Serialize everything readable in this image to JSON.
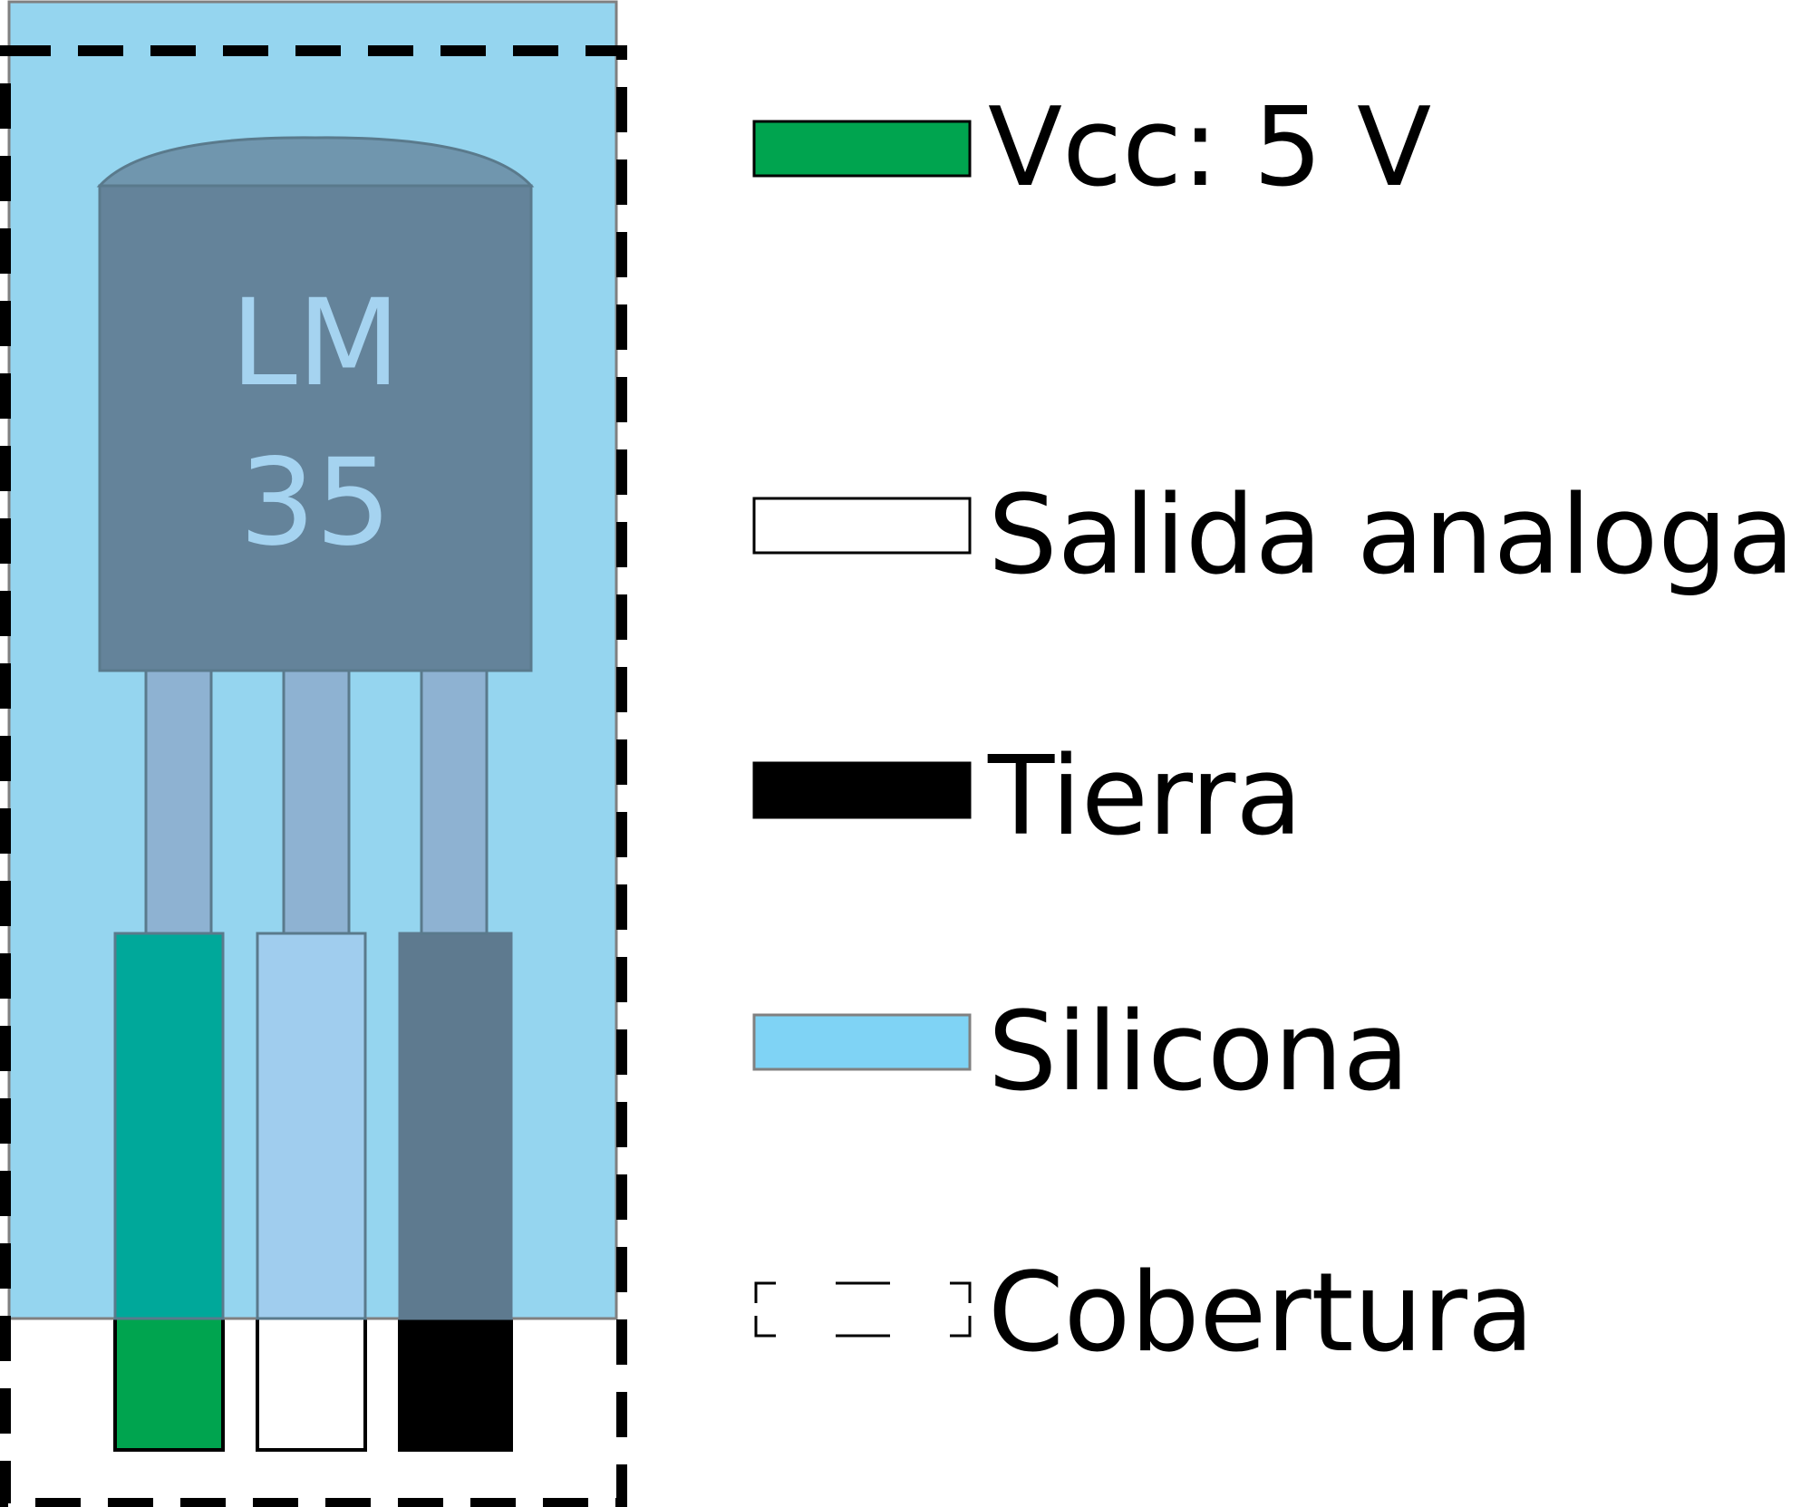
{
  "sensor": {
    "chip_line1": "LM",
    "chip_line2": "35"
  },
  "legend": [
    {
      "key": "vcc",
      "label": "Vcc: 5 V",
      "swatch": "green-solid"
    },
    {
      "key": "output",
      "label": "Salida analoga",
      "swatch": "white-outline"
    },
    {
      "key": "ground",
      "label": "Tierra",
      "swatch": "black-solid"
    },
    {
      "key": "silicone",
      "label": "Silicona",
      "swatch": "light-blue-solid"
    },
    {
      "key": "cover",
      "label": "Cobertura",
      "swatch": "dashed-outline"
    }
  ],
  "colors": {
    "silicone": "#95d5ef",
    "silicone_legend": "#7fd3f5",
    "chip_body": "#64839a",
    "chip_dome": "#7096ae",
    "chip_text": "#a5d3f0",
    "leg": "#8eb2d2",
    "vcc_wire": "#00a44f",
    "vcc_wire_covered": "#00a89a",
    "output_wire_covered": "#a0cdee",
    "ground_wire_covered": "#5e7a8f",
    "ground_wire": "#000000",
    "cover_line": "#000000"
  }
}
